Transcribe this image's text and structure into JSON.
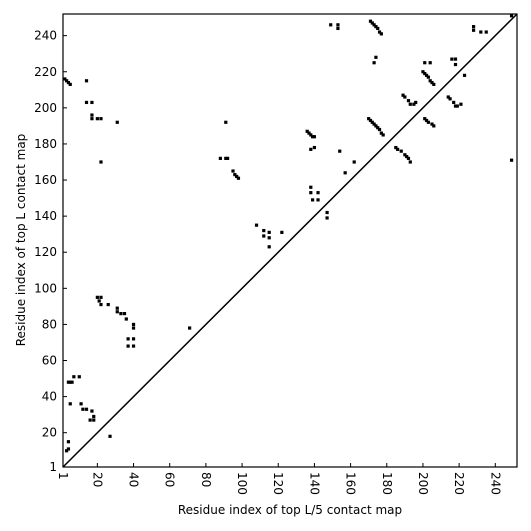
{
  "chart_data": {
    "type": "scatter",
    "xlabel": "Residue index of top L/5 contact map",
    "ylabel": "Residue index of top L contact map",
    "xlim": [
      1,
      252
    ],
    "ylim": [
      1,
      252
    ],
    "xticks": [
      1,
      20,
      40,
      60,
      80,
      100,
      120,
      140,
      160,
      180,
      200,
      220,
      240
    ],
    "yticks": [
      1,
      20,
      40,
      60,
      80,
      100,
      120,
      140,
      160,
      180,
      200,
      220,
      240
    ],
    "color": "#000000",
    "diagonal": true,
    "x": [
      2,
      3,
      4,
      5,
      14,
      14,
      17,
      17,
      17,
      20,
      22,
      31,
      22,
      20,
      22,
      21,
      22,
      26,
      31,
      31,
      33,
      35,
      36,
      40,
      40,
      37,
      40,
      37,
      40,
      4,
      5,
      6,
      7,
      10,
      5,
      11,
      12,
      14,
      17,
      18,
      18,
      16,
      27,
      4,
      4,
      3,
      71,
      88,
      91,
      92,
      91,
      95,
      96,
      97,
      98,
      108,
      112,
      112,
      115,
      115,
      115,
      122,
      136,
      137,
      138,
      139,
      140,
      138,
      140,
      138,
      138,
      139,
      142,
      142,
      147,
      147,
      149,
      153,
      153,
      154,
      157,
      162,
      171,
      172,
      173,
      174,
      175,
      176,
      177,
      173,
      174,
      170,
      171,
      172,
      173,
      174,
      175,
      176,
      177,
      178,
      185,
      186,
      188,
      190,
      191,
      192,
      193,
      189,
      190,
      192,
      193,
      195,
      196,
      200,
      201,
      202,
      203,
      204,
      205,
      206,
      201,
      204,
      201,
      202,
      203,
      205,
      206,
      214,
      215,
      217,
      218,
      219,
      221,
      216,
      218,
      218,
      223,
      228,
      228,
      232,
      235,
      249,
      249
    ],
    "values": [
      216,
      215,
      214,
      213,
      215,
      203,
      203,
      196,
      194,
      194,
      194,
      192,
      170,
      95,
      95,
      93,
      91,
      91,
      89,
      87,
      86,
      86,
      83,
      80,
      78,
      72,
      72,
      68,
      68,
      48,
      48,
      48,
      51,
      51,
      36,
      36,
      33,
      33,
      32,
      29,
      27,
      27,
      18,
      15,
      11,
      10,
      78,
      172,
      172,
      172,
      192,
      165,
      163,
      162,
      161,
      135,
      132,
      129,
      131,
      128,
      123,
      131,
      187,
      186,
      185,
      184,
      184,
      177,
      178,
      156,
      153,
      149,
      149,
      153,
      142,
      139,
      246,
      246,
      244,
      176,
      164,
      170,
      248,
      247,
      246,
      245,
      244,
      242,
      241,
      225,
      228,
      194,
      193,
      192,
      191,
      190,
      189,
      188,
      186,
      185,
      178,
      177,
      176,
      174,
      173,
      172,
      170,
      207,
      206,
      204,
      202,
      202,
      203,
      220,
      219,
      218,
      217,
      215,
      214,
      213,
      225,
      225,
      194,
      193,
      192,
      191,
      190,
      206,
      205,
      203,
      201,
      201,
      202,
      227,
      227,
      224,
      218,
      245,
      243,
      242,
      242,
      251,
      171
    ]
  }
}
